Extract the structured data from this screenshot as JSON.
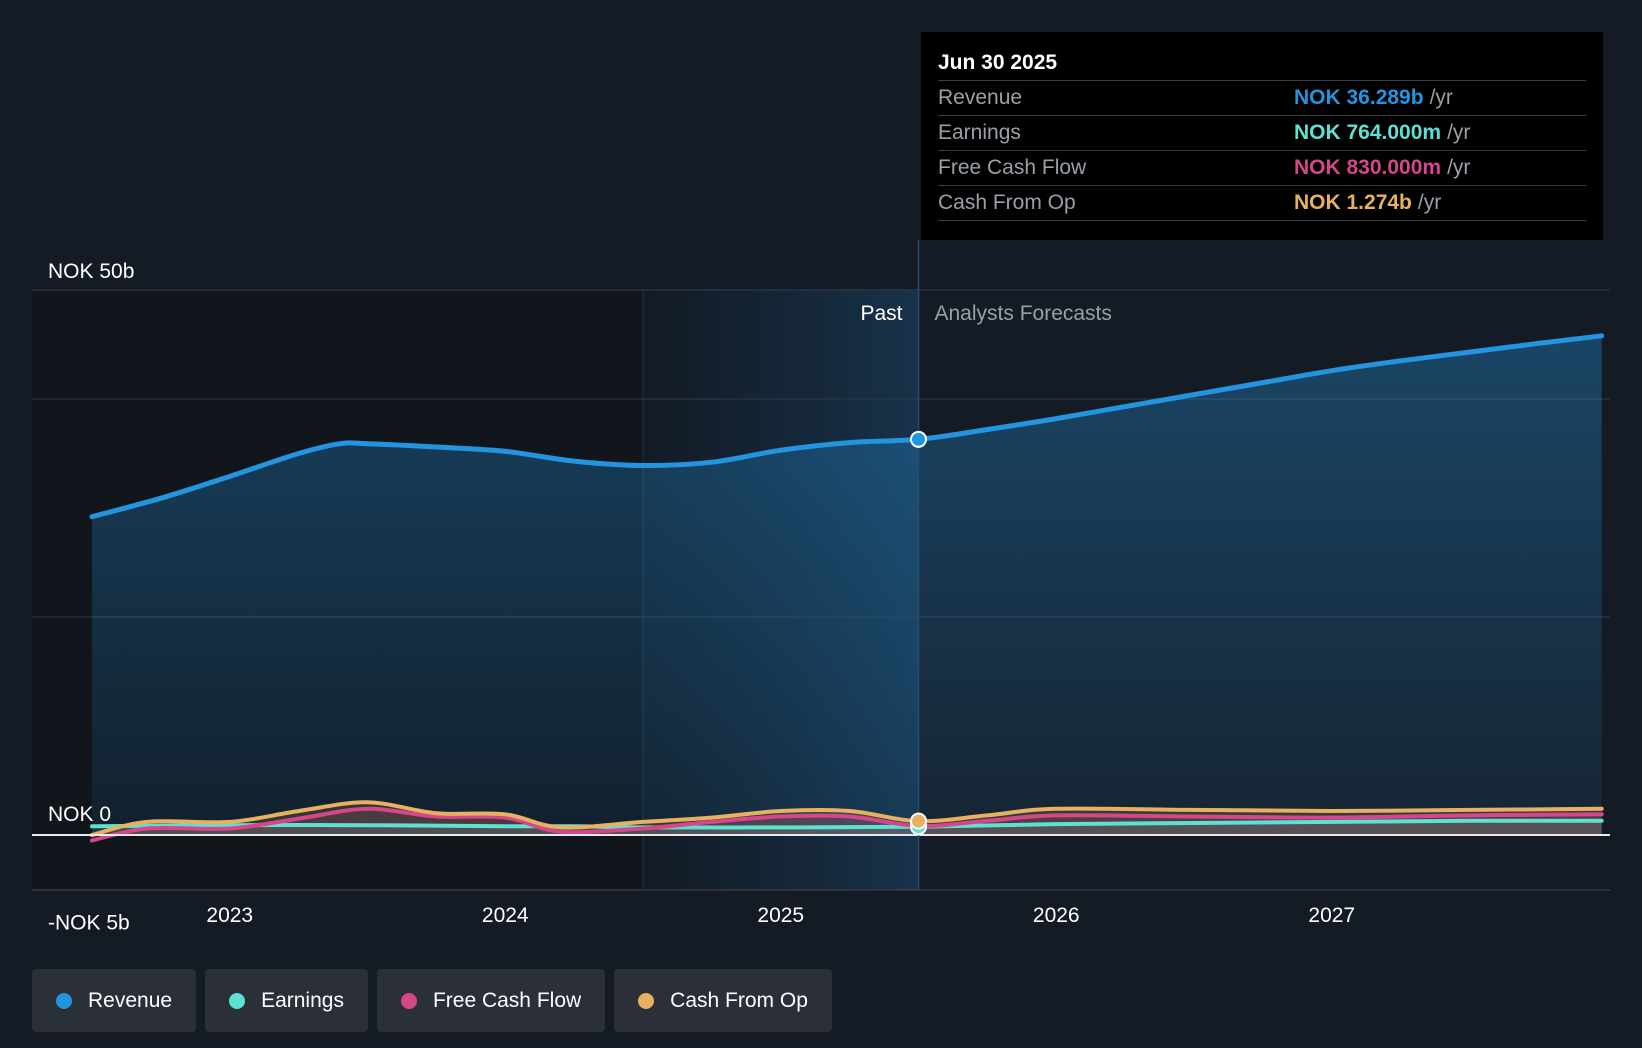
{
  "chart_data": {
    "type": "area",
    "y_axis": {
      "ticks": [
        "NOK 50b",
        "NOK 0",
        "-NOK 5b"
      ],
      "ylim": [
        -5,
        50
      ],
      "unit": "NOK b"
    },
    "x_axis": {
      "ticks": [
        "2023",
        "2024",
        "2025",
        "2026",
        "2027"
      ],
      "xlim": [
        2022.5,
        2027.98
      ]
    },
    "past_label": "Past",
    "forecast_label": "Analysts Forecasts",
    "divider_x": 2025.5,
    "past_shade_start_x": 2024.5,
    "series": [
      {
        "name": "Revenue",
        "color": "#2394df",
        "x": [
          2022.5,
          2022.75,
          2023.0,
          2023.25,
          2023.4,
          2023.5,
          2023.75,
          2024.0,
          2024.25,
          2024.5,
          2024.75,
          2025.0,
          2025.25,
          2025.5,
          2025.75,
          2026.0,
          2026.25,
          2026.5,
          2026.75,
          2027.0,
          2027.25,
          2027.5,
          2027.75,
          2027.98
        ],
        "y": [
          29.2,
          30.9,
          32.9,
          35.0,
          35.9,
          35.9,
          35.6,
          35.2,
          34.3,
          33.9,
          34.2,
          35.3,
          36.0,
          36.3,
          37.2,
          38.2,
          39.3,
          40.4,
          41.5,
          42.6,
          43.5,
          44.3,
          45.1,
          45.8
        ]
      },
      {
        "name": "Earnings",
        "color": "#5ee0d3",
        "x": [
          2022.5,
          2023.0,
          2023.5,
          2024.0,
          2024.25,
          2024.5,
          2025.0,
          2025.5,
          2026.0,
          2026.5,
          2027.0,
          2027.5,
          2027.98
        ],
        "y": [
          0.8,
          0.9,
          0.9,
          0.8,
          0.8,
          0.7,
          0.7,
          0.76,
          1.0,
          1.1,
          1.2,
          1.3,
          1.3
        ]
      },
      {
        "name": "Free Cash Flow",
        "color": "#d6478a",
        "x": [
          2022.5,
          2022.7,
          2023.0,
          2023.25,
          2023.5,
          2023.75,
          2024.0,
          2024.2,
          2024.5,
          2024.75,
          2025.0,
          2025.25,
          2025.5,
          2025.75,
          2026.0,
          2026.5,
          2027.0,
          2027.5,
          2027.98
        ],
        "y": [
          -0.5,
          0.6,
          0.6,
          1.5,
          2.4,
          1.7,
          1.6,
          0.3,
          0.6,
          1.2,
          1.7,
          1.7,
          0.83,
          1.3,
          1.8,
          1.7,
          1.6,
          1.8,
          1.9
        ]
      },
      {
        "name": "Cash From Op",
        "color": "#e8b061",
        "x": [
          2022.5,
          2022.7,
          2023.0,
          2023.25,
          2023.5,
          2023.75,
          2024.0,
          2024.2,
          2024.5,
          2024.75,
          2025.0,
          2025.25,
          2025.5,
          2025.75,
          2026.0,
          2026.5,
          2027.0,
          2027.5,
          2027.98
        ],
        "y": [
          0.0,
          1.2,
          1.2,
          2.2,
          3.0,
          2.0,
          1.9,
          0.7,
          1.2,
          1.6,
          2.2,
          2.2,
          1.27,
          1.8,
          2.4,
          2.3,
          2.2,
          2.3,
          2.4
        ]
      }
    ]
  },
  "tooltip": {
    "date": "Jun 30 2025",
    "x": 2025.5,
    "rows": [
      {
        "label": "Revenue",
        "value": "NOK 36.289b",
        "unit": "/yr",
        "color": "#2394df"
      },
      {
        "label": "Earnings",
        "value": "NOK 764.000m",
        "unit": "/yr",
        "color": "#5ee0d3"
      },
      {
        "label": "Free Cash Flow",
        "value": "NOK 830.000m",
        "unit": "/yr",
        "color": "#d6478a"
      },
      {
        "label": "Cash From Op",
        "value": "NOK 1.274b",
        "unit": "/yr",
        "color": "#e8b061"
      }
    ]
  },
  "legend": [
    {
      "label": "Revenue",
      "color": "#2394df"
    },
    {
      "label": "Earnings",
      "color": "#5ee0d3"
    },
    {
      "label": "Free Cash Flow",
      "color": "#d6478a"
    },
    {
      "label": "Cash From Op",
      "color": "#e8b061"
    }
  ]
}
